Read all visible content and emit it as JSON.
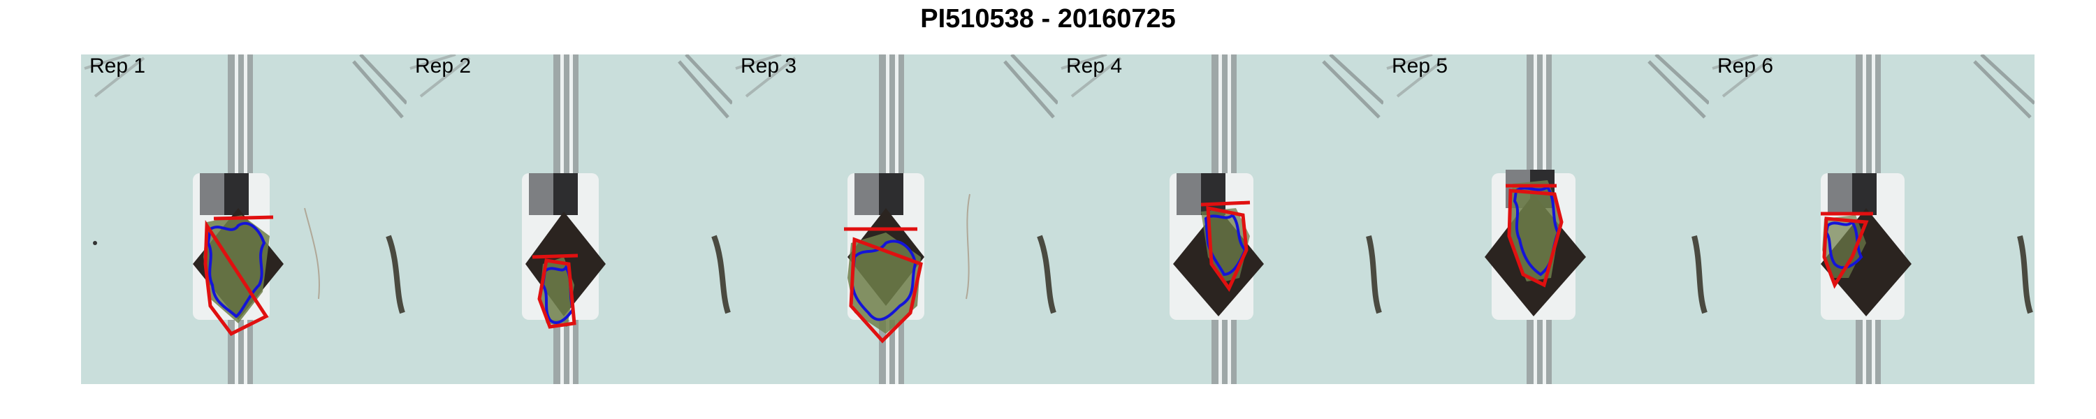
{
  "title": "PI510538 - 20160725",
  "panels": [
    {
      "label": "Rep 1"
    },
    {
      "label": "Rep 2"
    },
    {
      "label": "Rep 3"
    },
    {
      "label": "Rep 4"
    },
    {
      "label": "Rep 5"
    },
    {
      "label": "Rep 6"
    }
  ],
  "colors": {
    "background": "#c8ddda",
    "plant": "#6f7f4a",
    "contour": "#1414d8",
    "hull": "#e01010",
    "soil": "#2b2420",
    "rail": "#9aa3a3"
  }
}
